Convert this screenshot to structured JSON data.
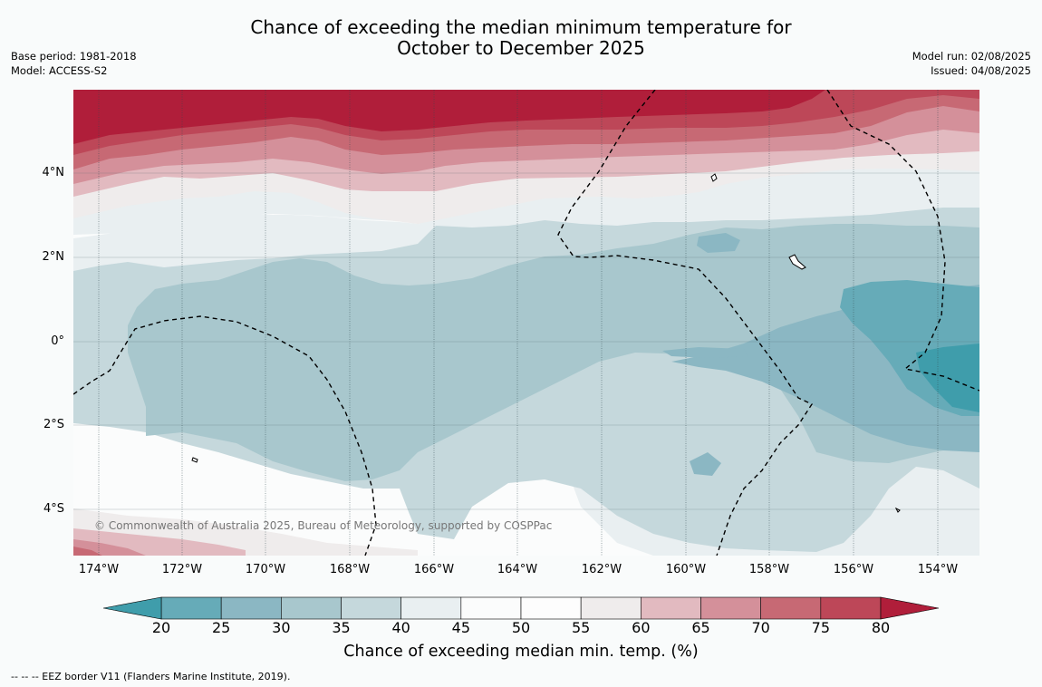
{
  "title": {
    "line1": "Chance of exceeding the median minimum temperature for",
    "line2": "October to December 2025"
  },
  "meta_left": {
    "line1": "Base period: 1981-2018",
    "line2": "Model: ACCESS-S2"
  },
  "meta_right": {
    "line1": "Model run: 02/08/2025",
    "line2": "Issued: 04/08/2025"
  },
  "map": {
    "lat_ticks": [
      "4°N",
      "2°N",
      "0°",
      "2°S",
      "4°S"
    ],
    "lon_ticks": [
      "174°W",
      "172°W",
      "170°W",
      "168°W",
      "166°W",
      "164°W",
      "162°W",
      "160°W",
      "158°W",
      "156°W",
      "154°W"
    ],
    "lat_values": [
      4,
      2,
      0,
      -2,
      -4
    ],
    "lon_values": [
      -174,
      -172,
      -170,
      -168,
      -166,
      -164,
      -162,
      -160,
      -158,
      -156,
      -154
    ],
    "extent": {
      "lon_min": -174.6,
      "lon_max": -153.0,
      "lat_min": -5.2,
      "lat_max": 5.9
    },
    "copyright": "© Commonwealth of Australia 2025, Bureau of Meteorology, supported by COSPPac"
  },
  "colorbar": {
    "ticks": [
      "20",
      "25",
      "30",
      "35",
      "40",
      "45",
      "50",
      "55",
      "60",
      "65",
      "70",
      "75",
      "80"
    ],
    "colors": {
      "under": "#3f9dab",
      "c20": "#66abb8",
      "c25": "#8bb7c3",
      "c30": "#a8c7cd",
      "c35": "#c5d8dc",
      "c40": "#e9eff1",
      "c45": "#fbfcfc",
      "c50": "#fdfdfd",
      "c55": "#efecec",
      "c60": "#e2bac0",
      "c65": "#d4909a",
      "c70": "#c76974",
      "c75": "#bd4758",
      "over": "#b01e3a"
    },
    "label": "Chance of exceeding median min. temp. (%)"
  },
  "footnote": "-- -- -- EEZ border V11 (Flanders Marine Institute, 2019)."
}
